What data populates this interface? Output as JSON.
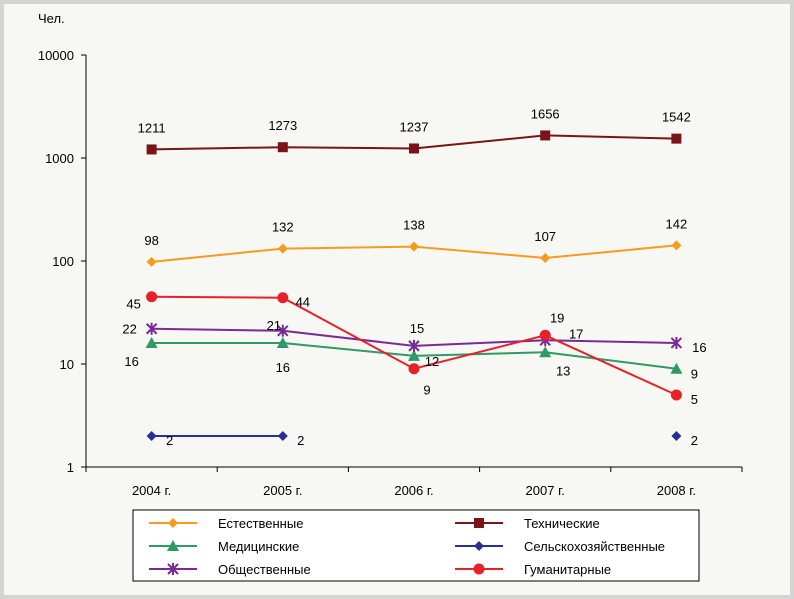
{
  "chart_data": {
    "type": "line",
    "yscale": "log",
    "ylabel": "Чел.",
    "ylim": [
      1,
      10000
    ],
    "y_ticks": [
      "1",
      "10",
      "100",
      "1000",
      "10000"
    ],
    "categories": [
      "2004 г.",
      "2005 г.",
      "2006 г.",
      "2007 г.",
      "2008 г."
    ],
    "legend_position": "bottom",
    "series": [
      {
        "name": "Естественные",
        "color": "#f79a1e",
        "marker": "diamond",
        "values": [
          98,
          132,
          138,
          107,
          142
        ]
      },
      {
        "name": "Технические",
        "color": "#7a1418",
        "marker": "square",
        "values": [
          1211,
          1273,
          1237,
          1656,
          1542
        ]
      },
      {
        "name": "Медицинские",
        "color": "#2e9a66",
        "marker": "triangle",
        "values": [
          16,
          16,
          12,
          13,
          9
        ]
      },
      {
        "name": "Сельскохозяйственные",
        "color": "#2b2e92",
        "marker": "diamond",
        "values": [
          2,
          2,
          null,
          null,
          2
        ]
      },
      {
        "name": "Общественные",
        "color": "#7a2a96",
        "marker": "star",
        "values": [
          22,
          21,
          15,
          17,
          16
        ]
      },
      {
        "name": "Гуманитарные",
        "color": "#e8202a",
        "marker": "circle",
        "values": [
          45,
          44,
          9,
          19,
          5
        ]
      }
    ]
  }
}
